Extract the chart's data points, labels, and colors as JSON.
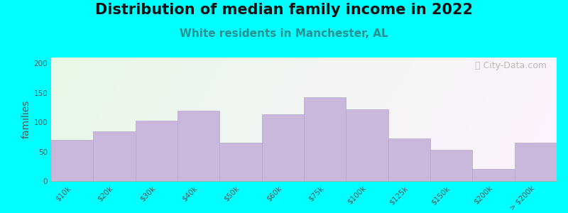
{
  "title": "Distribution of median family income in 2022",
  "subtitle": "White residents in Manchester, AL",
  "ylabel": "families",
  "categories": [
    "$10k",
    "$20k",
    "$30k",
    "$40k",
    "$50k",
    "$60k",
    "$75k",
    "$100k",
    "$125k",
    "$150k",
    "$200k",
    "> $200k"
  ],
  "values": [
    70,
    85,
    103,
    120,
    65,
    113,
    143,
    122,
    72,
    53,
    21,
    65
  ],
  "bar_color": "#c9b8dc",
  "bar_edge_color": "#b8a5cc",
  "title_fontsize": 15,
  "subtitle_fontsize": 11,
  "subtitle_color": "#2a9090",
  "ylabel_color": "#555555",
  "ylabel_fontsize": 10,
  "tick_fontsize": 7.5,
  "ylim": [
    0,
    210
  ],
  "yticks": [
    0,
    50,
    100,
    150,
    200
  ],
  "background_outer": "#00ffff",
  "bg_color_topleft": "#d8ecd0",
  "bg_color_right": "#f0f0f0",
  "bg_color_bottom": "#f8f8f8",
  "watermark_text": "ⓘ City-Data.com",
  "watermark_color": "#b0b0b0",
  "watermark_fontsize": 9
}
